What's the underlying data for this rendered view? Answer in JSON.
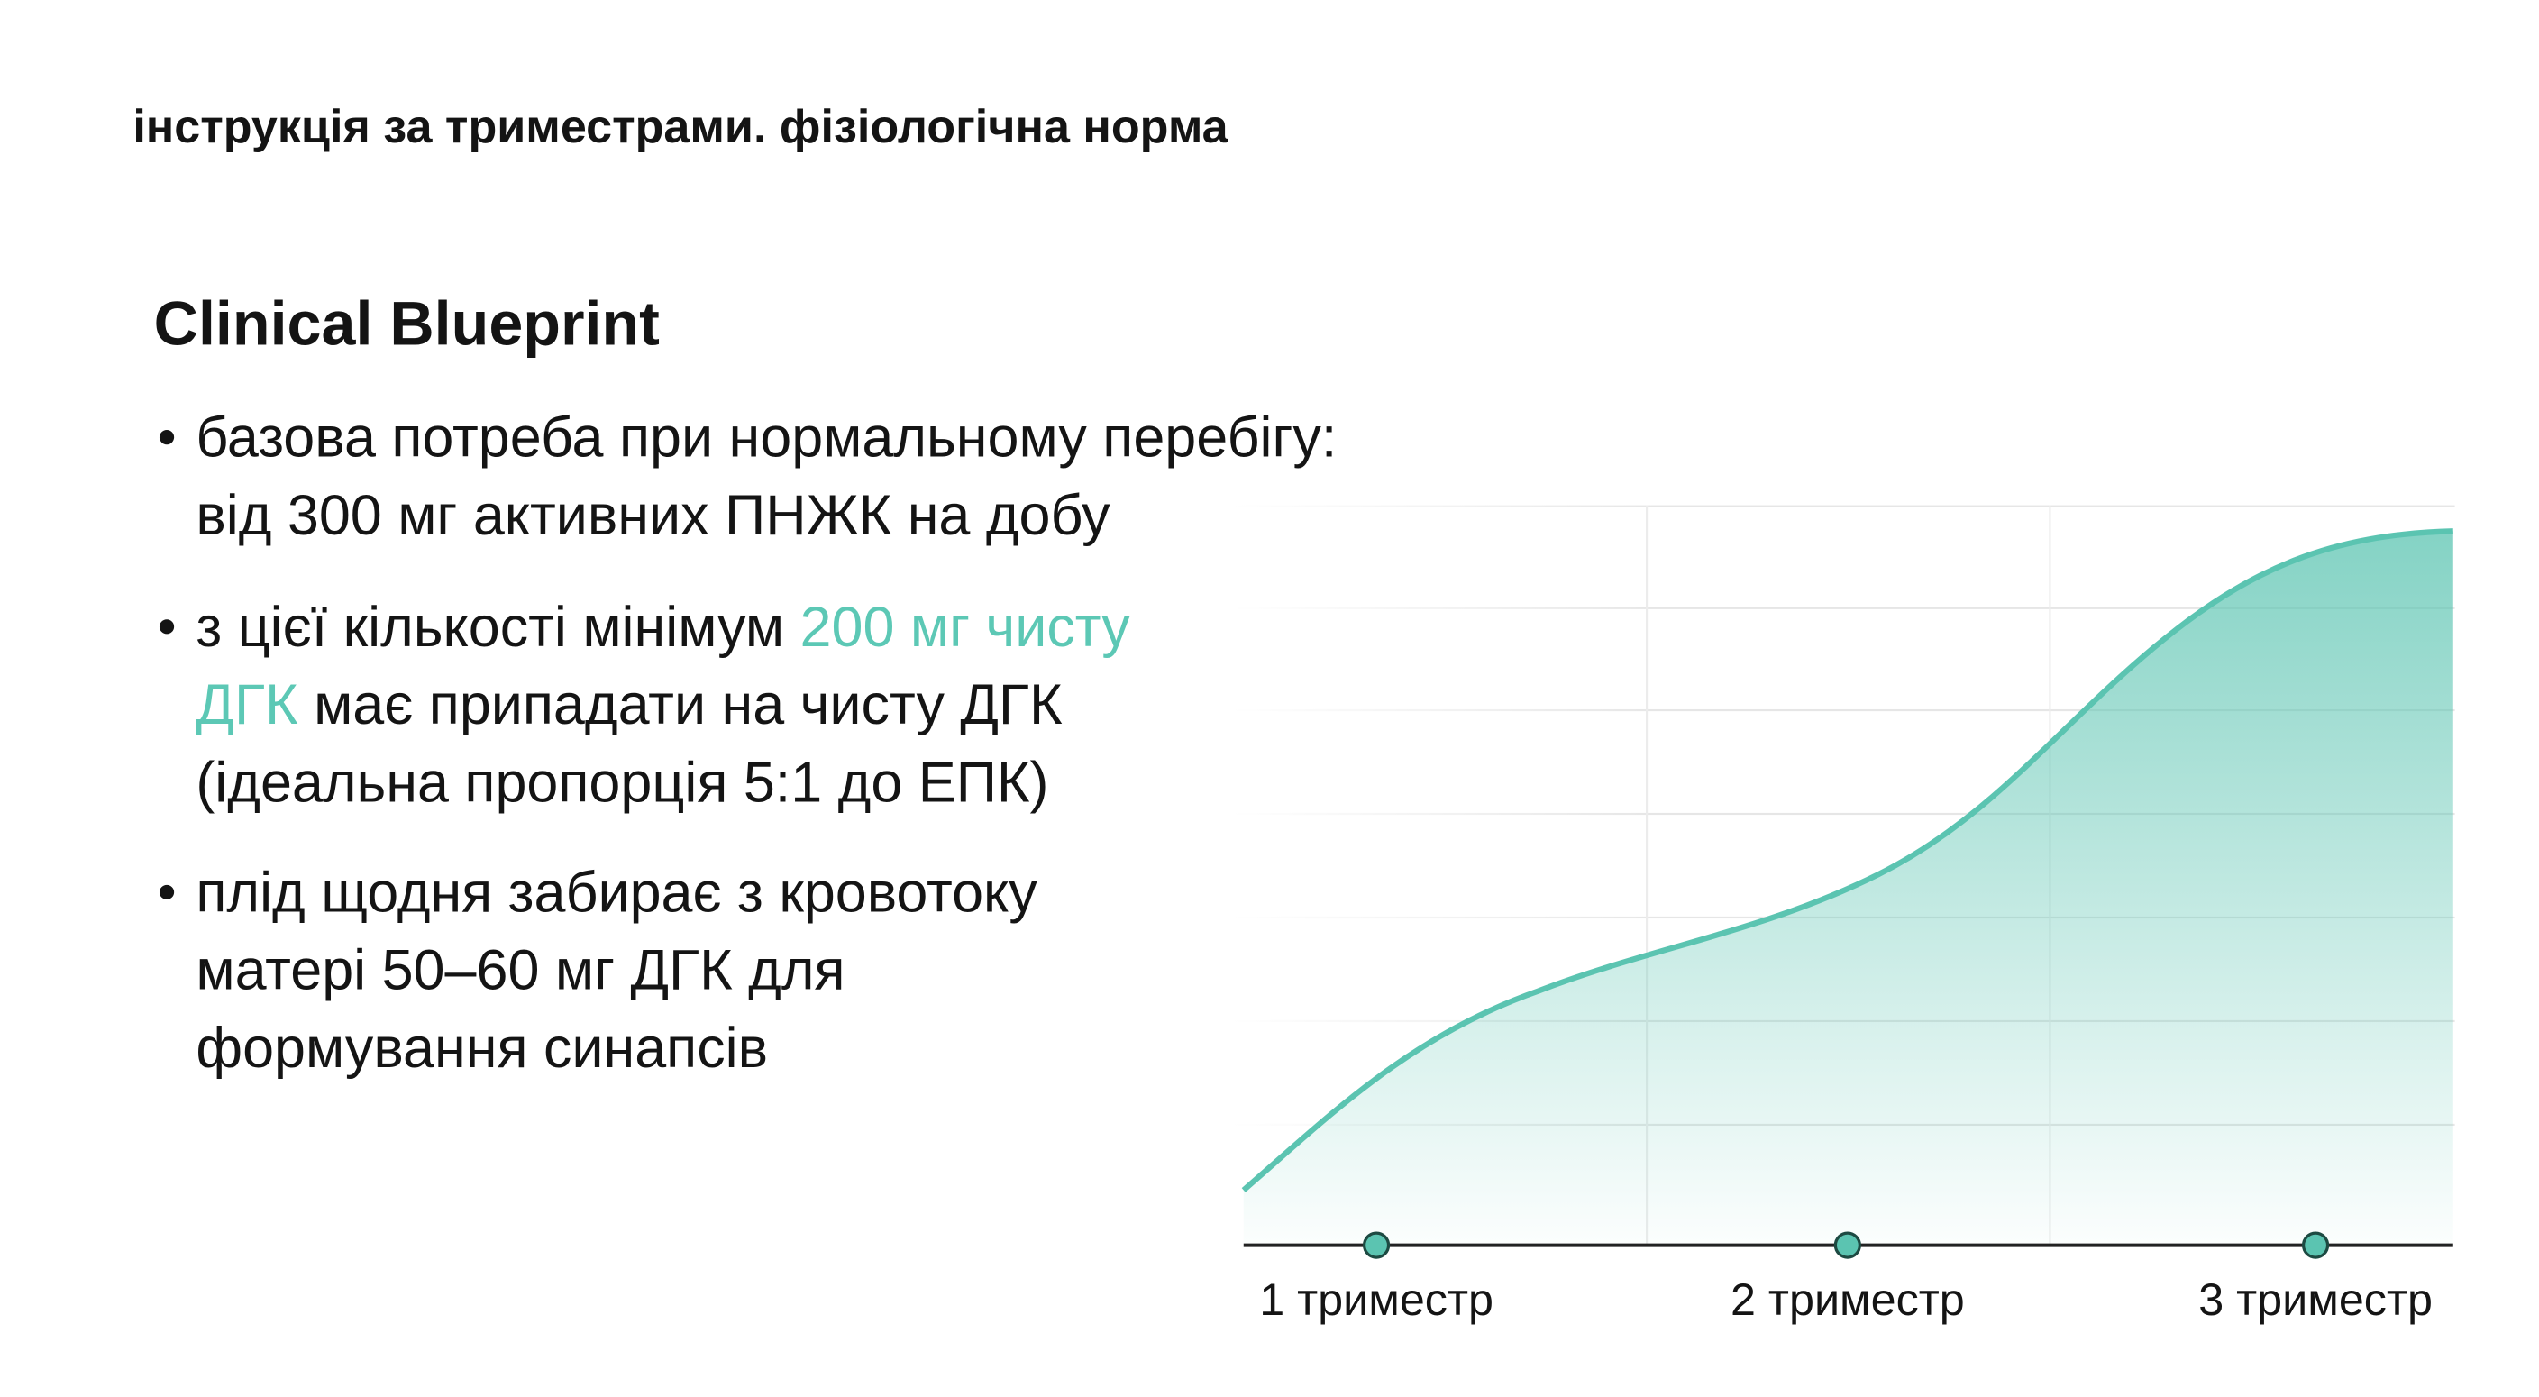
{
  "header": {
    "title": "інструкція за триместрами. фізіологічна норма"
  },
  "section": {
    "title": "Clinical Blueprint",
    "bullets": [
      [
        [
          {
            "text": "базова потреба при нормальному перебігу:"
          }
        ],
        [
          {
            "text": "від 300 мг активних ПНЖК на добу"
          }
        ]
      ],
      [
        [
          {
            "text": "з цієї кількості мінімум "
          },
          {
            "text": "200 мг чисту",
            "accent": true
          }
        ],
        [
          {
            "text": "ДГК",
            "accent": true
          },
          {
            "text": " має припадати на чисту ДГК"
          }
        ],
        [
          {
            "text": "(ідеальна пропорція 5:1 до ЕПК)"
          }
        ]
      ],
      [
        [
          {
            "text": "плід щодня забирає з кровотоку"
          }
        ],
        [
          {
            "text": "матері 50–60 мг ДГК для"
          }
        ],
        [
          {
            "text": "формування синапсів"
          }
        ]
      ]
    ]
  },
  "illustration": {
    "labels": [
      "1 триместр",
      "2 триместр",
      "3 триместр"
    ]
  }
}
